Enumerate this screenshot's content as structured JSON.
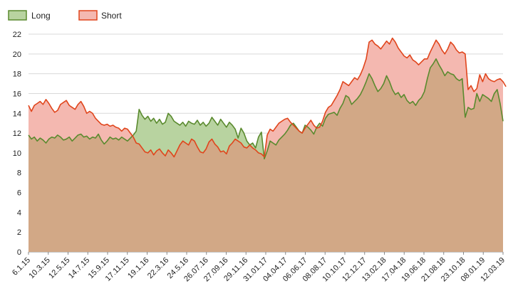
{
  "chart_data": {
    "type": "area",
    "ylim": [
      0,
      22
    ],
    "yticks": [
      0,
      2,
      4,
      6,
      8,
      10,
      12,
      14,
      16,
      18,
      20,
      22
    ],
    "grid": true,
    "legend_position": "top-left",
    "colors": {
      "long_line": "#5a8a2e",
      "long_fill": "#b8d3a0",
      "short_line": "#e0451c",
      "short_fill": "#f4b8b0",
      "overlap_fill": "#d2a886",
      "grid": "#d9d9d9"
    },
    "x_tick_labels": [
      "6.1.15",
      "10.3.15",
      "12.5.15",
      "14.7.15",
      "15.9.15",
      "17.11.15",
      "19.1.16",
      "22.3.16",
      "24.5.16",
      "26.07.16",
      "27.09.16",
      "29.11.16",
      "31.01.17",
      "04.04.17",
      "06.06.17",
      "08.08.17",
      "10.10.17",
      "12.12.17",
      "13.02.18",
      "17.04.18",
      "19.06.18",
      "21.08.18",
      "23.10.18",
      "08.01.19",
      "12.03.19"
    ],
    "series": [
      {
        "name": "Long",
        "values": [
          11.8,
          11.4,
          11.6,
          11.2,
          11.5,
          11.3,
          11.0,
          11.4,
          11.6,
          11.5,
          11.8,
          11.6,
          11.3,
          11.4,
          11.6,
          11.2,
          11.5,
          11.8,
          11.9,
          11.6,
          11.7,
          11.4,
          11.6,
          11.5,
          11.9,
          11.3,
          10.9,
          11.2,
          11.6,
          11.4,
          11.5,
          11.3,
          11.6,
          11.4,
          11.2,
          11.5,
          11.8,
          12.2,
          14.4,
          13.8,
          13.4,
          13.7,
          13.2,
          13.5,
          13.0,
          13.4,
          12.9,
          13.1,
          14.0,
          13.7,
          13.2,
          13.0,
          12.8,
          13.1,
          12.7,
          13.2,
          13.0,
          12.9,
          13.3,
          12.8,
          13.1,
          12.7,
          13.0,
          13.6,
          13.2,
          12.8,
          13.4,
          13.0,
          12.6,
          13.1,
          12.8,
          12.4,
          11.5,
          12.5,
          12.0,
          11.2,
          10.8,
          11.0,
          10.5,
          11.6,
          12.1,
          9.4,
          10.2,
          11.2,
          11.0,
          10.8,
          11.3,
          11.6,
          11.9,
          12.3,
          12.8,
          13.0,
          12.6,
          12.2,
          12.0,
          12.8,
          12.6,
          12.3,
          11.9,
          12.6,
          13.0,
          12.7,
          13.5,
          13.9,
          14.0,
          14.1,
          13.8,
          14.5,
          15.0,
          15.8,
          15.6,
          14.9,
          15.2,
          15.5,
          15.9,
          16.5,
          17.2,
          18.0,
          17.5,
          16.8,
          16.2,
          16.5,
          17.0,
          17.8,
          17.2,
          16.4,
          15.9,
          16.1,
          15.6,
          15.9,
          15.3,
          15.0,
          15.2,
          14.8,
          15.3,
          15.6,
          16.2,
          17.5,
          18.6,
          19.0,
          19.5,
          18.9,
          18.4,
          17.8,
          18.2,
          18.0,
          17.9,
          17.5,
          17.3,
          17.5,
          13.6,
          14.6,
          14.4,
          14.5,
          16.0,
          15.2,
          15.9,
          15.7,
          15.5,
          15.2,
          16.0,
          16.4,
          15.0,
          13.2
        ]
      },
      {
        "name": "Short",
        "values": [
          14.8,
          14.2,
          14.8,
          15.0,
          15.2,
          14.9,
          15.4,
          15.0,
          14.5,
          14.1,
          14.3,
          14.9,
          15.1,
          15.3,
          14.8,
          14.6,
          14.4,
          14.9,
          15.2,
          14.7,
          14.0,
          14.2,
          14.0,
          13.5,
          13.2,
          12.9,
          12.8,
          12.9,
          12.7,
          12.8,
          12.6,
          12.5,
          12.2,
          12.5,
          12.4,
          12.0,
          11.6,
          11.0,
          10.9,
          10.5,
          10.1,
          10.0,
          10.3,
          9.8,
          10.2,
          10.4,
          10.0,
          9.7,
          10.3,
          10.0,
          9.6,
          10.2,
          10.8,
          11.2,
          11.0,
          10.8,
          11.4,
          11.2,
          10.6,
          10.1,
          10.0,
          10.4,
          11.1,
          11.4,
          10.9,
          10.6,
          10.1,
          10.2,
          9.9,
          10.7,
          11.0,
          11.4,
          11.2,
          11.0,
          10.6,
          10.5,
          10.8,
          10.5,
          10.3,
          10.0,
          9.9,
          9.6,
          11.8,
          12.4,
          12.2,
          12.6,
          13.0,
          13.2,
          13.4,
          13.5,
          13.1,
          12.8,
          12.5,
          12.2,
          12.0,
          12.5,
          12.9,
          13.3,
          12.8,
          12.5,
          12.6,
          13.2,
          14.1,
          14.6,
          14.8,
          15.3,
          15.8,
          16.4,
          17.2,
          17.0,
          16.8,
          17.2,
          17.6,
          17.4,
          17.9,
          18.6,
          19.5,
          21.2,
          21.4,
          21.0,
          20.8,
          20.5,
          20.9,
          21.3,
          21.0,
          21.6,
          21.2,
          20.6,
          20.2,
          19.8,
          19.6,
          19.9,
          19.4,
          19.2,
          18.9,
          19.2,
          19.5,
          19.5,
          20.2,
          20.8,
          21.4,
          21.0,
          20.4,
          20.0,
          20.5,
          21.2,
          20.9,
          20.4,
          20.1,
          20.2,
          20.0,
          16.4,
          16.8,
          16.2,
          16.5,
          17.9,
          17.2,
          18.0,
          17.5,
          17.3,
          17.2,
          17.4,
          17.5,
          17.2,
          16.7
        ]
      }
    ]
  }
}
